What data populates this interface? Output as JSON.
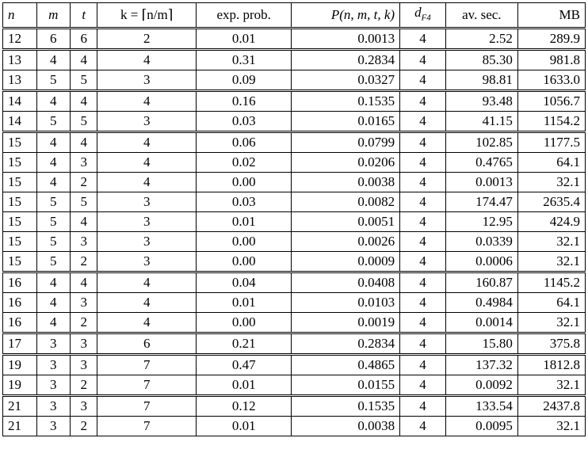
{
  "table": {
    "headers": {
      "n": "n",
      "m": "m",
      "t": "t",
      "k": "k = ⌈n/m⌉",
      "exp_prob": "exp. prob.",
      "P": "P(n, m, t, k)",
      "dF4": "d",
      "dF4_sub": "F4",
      "av_sec": "av. sec.",
      "MB": "MB"
    },
    "groups": [
      [
        [
          "12",
          "6",
          "6",
          "2",
          "0.01",
          "0.0013",
          "4",
          "2.52",
          "289.9"
        ]
      ],
      [
        [
          "13",
          "4",
          "4",
          "4",
          "0.31",
          "0.2834",
          "4",
          "85.30",
          "981.8"
        ],
        [
          "13",
          "5",
          "5",
          "3",
          "0.09",
          "0.0327",
          "4",
          "98.81",
          "1633.0"
        ]
      ],
      [
        [
          "14",
          "4",
          "4",
          "4",
          "0.16",
          "0.1535",
          "4",
          "93.48",
          "1056.7"
        ],
        [
          "14",
          "5",
          "5",
          "3",
          "0.03",
          "0.0165",
          "4",
          "41.15",
          "1154.2"
        ]
      ],
      [
        [
          "15",
          "4",
          "4",
          "4",
          "0.06",
          "0.0799",
          "4",
          "102.85",
          "1177.5"
        ],
        [
          "15",
          "4",
          "3",
          "4",
          "0.02",
          "0.0206",
          "4",
          "0.4765",
          "64.1"
        ],
        [
          "15",
          "4",
          "2",
          "4",
          "0.00",
          "0.0038",
          "4",
          "0.0013",
          "32.1"
        ],
        [
          "15",
          "5",
          "5",
          "3",
          "0.03",
          "0.0082",
          "4",
          "174.47",
          "2635.4"
        ],
        [
          "15",
          "5",
          "4",
          "3",
          "0.01",
          "0.0051",
          "4",
          "12.95",
          "424.9"
        ],
        [
          "15",
          "5",
          "3",
          "3",
          "0.00",
          "0.0026",
          "4",
          "0.0339",
          "32.1"
        ],
        [
          "15",
          "5",
          "2",
          "3",
          "0.00",
          "0.0009",
          "4",
          "0.0006",
          "32.1"
        ]
      ],
      [
        [
          "16",
          "4",
          "4",
          "4",
          "0.04",
          "0.0408",
          "4",
          "160.87",
          "1145.2"
        ],
        [
          "16",
          "4",
          "3",
          "4",
          "0.01",
          "0.0103",
          "4",
          "0.4984",
          "64.1"
        ],
        [
          "16",
          "4",
          "2",
          "4",
          "0.00",
          "0.0019",
          "4",
          "0.0014",
          "32.1"
        ]
      ],
      [
        [
          "17",
          "3",
          "3",
          "6",
          "0.21",
          "0.2834",
          "4",
          "15.80",
          "375.8"
        ]
      ],
      [
        [
          "19",
          "3",
          "3",
          "7",
          "0.47",
          "0.4865",
          "4",
          "137.32",
          "1812.8"
        ],
        [
          "19",
          "3",
          "2",
          "7",
          "0.01",
          "0.0155",
          "4",
          "0.0092",
          "32.1"
        ]
      ],
      [
        [
          "21",
          "3",
          "3",
          "7",
          "0.12",
          "0.1535",
          "4",
          "133.54",
          "2437.8"
        ],
        [
          "21",
          "3",
          "2",
          "7",
          "0.01",
          "0.0038",
          "4",
          "0.0095",
          "32.1"
        ]
      ]
    ]
  }
}
